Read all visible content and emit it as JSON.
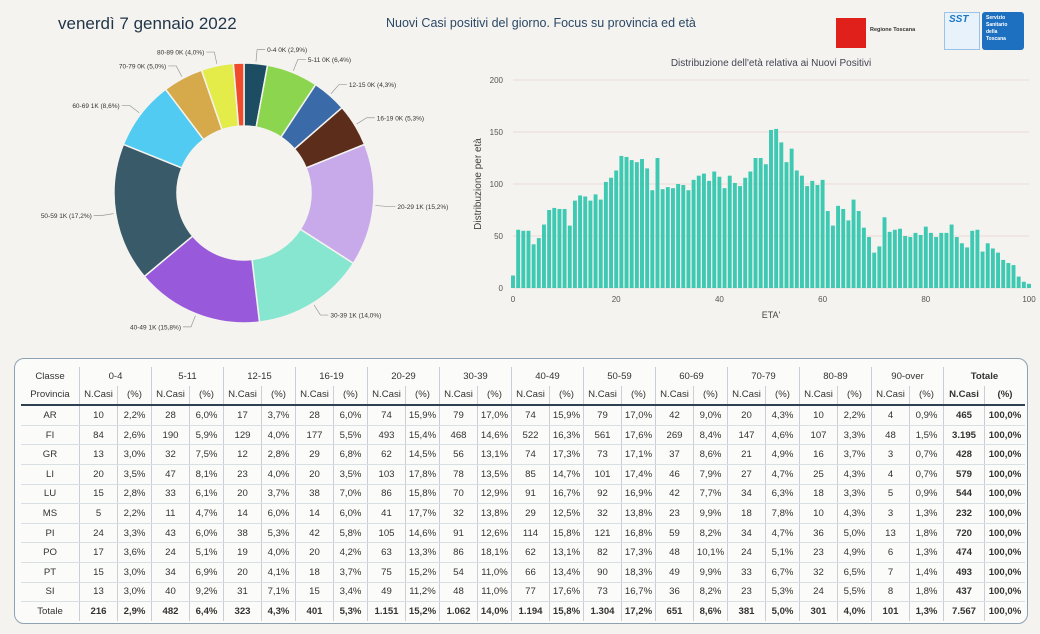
{
  "header": {
    "date": "venerdì 7 gennaio 2022",
    "title": "Nuovi Casi positivi del giorno. Focus su provincia ed età",
    "logo_regione": "Regione Toscana",
    "logo_sst": "SST",
    "logo_sst_sub": [
      "Servizio",
      "Sanitario",
      "della",
      "Toscana"
    ]
  },
  "colors": {
    "histogram": "#3dc9b2",
    "donut": [
      "#1c4d63",
      "#8cd64f",
      "#3b6aa8",
      "#5c2d1a",
      "#c8a9ea",
      "#86e6cf",
      "#9959db",
      "#395a68",
      "#52cbf2",
      "#d6a94a",
      "#e3ec48",
      "#f04b2a"
    ]
  },
  "chart_data": [
    {
      "type": "pie",
      "donut": true,
      "slices": [
        {
          "label": "0-4",
          "value_label": "0K",
          "percent": 2.9
        },
        {
          "label": "5-11",
          "value_label": "0K",
          "percent": 6.4
        },
        {
          "label": "12-15",
          "value_label": "0K",
          "percent": 4.3
        },
        {
          "label": "16-19",
          "value_label": "0K",
          "percent": 5.3
        },
        {
          "label": "20-29",
          "value_label": "1K",
          "percent": 15.2
        },
        {
          "label": "30-39",
          "value_label": "1K",
          "percent": 14.0
        },
        {
          "label": "40-49",
          "value_label": "1K",
          "percent": 15.8
        },
        {
          "label": "50-59",
          "value_label": "1K",
          "percent": 17.2
        },
        {
          "label": "60-69",
          "value_label": "1K",
          "percent": 8.6
        },
        {
          "label": "70-79",
          "value_label": "0K",
          "percent": 5.0
        },
        {
          "label": "80-89",
          "value_label": "0K",
          "percent": 4.0
        },
        {
          "label": "90-over",
          "value_label": "",
          "percent": 1.3
        }
      ]
    },
    {
      "type": "bar",
      "title": "Distribuzione dell'età relativa ai Nuovi Positivi",
      "xlabel": "ETA'",
      "ylabel": "Distribuzione per età",
      "xlim": [
        0,
        100
      ],
      "ylim": [
        0,
        200
      ],
      "xticks": [
        0,
        20,
        40,
        60,
        80,
        100
      ],
      "yticks": [
        0,
        50,
        100,
        150,
        200
      ],
      "grid": true,
      "x_start": 0,
      "values": [
        12,
        56,
        55,
        55,
        42,
        48,
        61,
        75,
        77,
        76,
        76,
        60,
        84,
        89,
        88,
        84,
        90,
        85,
        102,
        106,
        113,
        127,
        126,
        123,
        121,
        124,
        115,
        94,
        125,
        95,
        97,
        96,
        100,
        99,
        94,
        104,
        108,
        110,
        103,
        112,
        107,
        96,
        108,
        101,
        98,
        106,
        112,
        125,
        125,
        119,
        152,
        153,
        140,
        121,
        134,
        113,
        108,
        98,
        103,
        99,
        104,
        74,
        60,
        79,
        76,
        65,
        85,
        74,
        58,
        49,
        34,
        40,
        68,
        54,
        56,
        57,
        50,
        49,
        53,
        51,
        59,
        53,
        49,
        53,
        53,
        61,
        49,
        43,
        39,
        55,
        56,
        35,
        43,
        38,
        34,
        27,
        24,
        22,
        11,
        6,
        4
      ]
    }
  ],
  "table": {
    "class_header": "Classe",
    "province_header": "Provincia",
    "total_header": "Totale",
    "col_ncasi": "N.Casi",
    "col_pct": "(%)",
    "classes": [
      "0-4",
      "5-11",
      "12-15",
      "16-19",
      "20-29",
      "30-39",
      "40-49",
      "50-59",
      "60-69",
      "70-79",
      "80-89",
      "90-over"
    ],
    "rows": [
      {
        "prov": "AR",
        "c": [
          [
            "10",
            "2,2%"
          ],
          [
            "28",
            "6,0%"
          ],
          [
            "17",
            "3,7%"
          ],
          [
            "28",
            "6,0%"
          ],
          [
            "74",
            "15,9%"
          ],
          [
            "79",
            "17,0%"
          ],
          [
            "74",
            "15,9%"
          ],
          [
            "79",
            "17,0%"
          ],
          [
            "42",
            "9,0%"
          ],
          [
            "20",
            "4,3%"
          ],
          [
            "10",
            "2,2%"
          ],
          [
            "4",
            "0,9%"
          ]
        ],
        "tot": "465",
        "tp": "100,0%"
      },
      {
        "prov": "FI",
        "c": [
          [
            "84",
            "2,6%"
          ],
          [
            "190",
            "5,9%"
          ],
          [
            "129",
            "4,0%"
          ],
          [
            "177",
            "5,5%"
          ],
          [
            "493",
            "15,4%"
          ],
          [
            "468",
            "14,6%"
          ],
          [
            "522",
            "16,3%"
          ],
          [
            "561",
            "17,6%"
          ],
          [
            "269",
            "8,4%"
          ],
          [
            "147",
            "4,6%"
          ],
          [
            "107",
            "3,3%"
          ],
          [
            "48",
            "1,5%"
          ]
        ],
        "tot": "3.195",
        "tp": "100,0%"
      },
      {
        "prov": "GR",
        "c": [
          [
            "13",
            "3,0%"
          ],
          [
            "32",
            "7,5%"
          ],
          [
            "12",
            "2,8%"
          ],
          [
            "29",
            "6,8%"
          ],
          [
            "62",
            "14,5%"
          ],
          [
            "56",
            "13,1%"
          ],
          [
            "74",
            "17,3%"
          ],
          [
            "73",
            "17,1%"
          ],
          [
            "37",
            "8,6%"
          ],
          [
            "21",
            "4,9%"
          ],
          [
            "16",
            "3,7%"
          ],
          [
            "3",
            "0,7%"
          ]
        ],
        "tot": "428",
        "tp": "100,0%"
      },
      {
        "prov": "LI",
        "c": [
          [
            "20",
            "3,5%"
          ],
          [
            "47",
            "8,1%"
          ],
          [
            "23",
            "4,0%"
          ],
          [
            "20",
            "3,5%"
          ],
          [
            "103",
            "17,8%"
          ],
          [
            "78",
            "13,5%"
          ],
          [
            "85",
            "14,7%"
          ],
          [
            "101",
            "17,4%"
          ],
          [
            "46",
            "7,9%"
          ],
          [
            "27",
            "4,7%"
          ],
          [
            "25",
            "4,3%"
          ],
          [
            "4",
            "0,7%"
          ]
        ],
        "tot": "579",
        "tp": "100,0%"
      },
      {
        "prov": "LU",
        "c": [
          [
            "15",
            "2,8%"
          ],
          [
            "33",
            "6,1%"
          ],
          [
            "20",
            "3,7%"
          ],
          [
            "38",
            "7,0%"
          ],
          [
            "86",
            "15,8%"
          ],
          [
            "70",
            "12,9%"
          ],
          [
            "91",
            "16,7%"
          ],
          [
            "92",
            "16,9%"
          ],
          [
            "42",
            "7,7%"
          ],
          [
            "34",
            "6,3%"
          ],
          [
            "18",
            "3,3%"
          ],
          [
            "5",
            "0,9%"
          ]
        ],
        "tot": "544",
        "tp": "100,0%"
      },
      {
        "prov": "MS",
        "c": [
          [
            "5",
            "2,2%"
          ],
          [
            "11",
            "4,7%"
          ],
          [
            "14",
            "6,0%"
          ],
          [
            "14",
            "6,0%"
          ],
          [
            "41",
            "17,7%"
          ],
          [
            "32",
            "13,8%"
          ],
          [
            "29",
            "12,5%"
          ],
          [
            "32",
            "13,8%"
          ],
          [
            "23",
            "9,9%"
          ],
          [
            "18",
            "7,8%"
          ],
          [
            "10",
            "4,3%"
          ],
          [
            "3",
            "1,3%"
          ]
        ],
        "tot": "232",
        "tp": "100,0%"
      },
      {
        "prov": "PI",
        "c": [
          [
            "24",
            "3,3%"
          ],
          [
            "43",
            "6,0%"
          ],
          [
            "38",
            "5,3%"
          ],
          [
            "42",
            "5,8%"
          ],
          [
            "105",
            "14,6%"
          ],
          [
            "91",
            "12,6%"
          ],
          [
            "114",
            "15,8%"
          ],
          [
            "121",
            "16,8%"
          ],
          [
            "59",
            "8,2%"
          ],
          [
            "34",
            "4,7%"
          ],
          [
            "36",
            "5,0%"
          ],
          [
            "13",
            "1,8%"
          ]
        ],
        "tot": "720",
        "tp": "100,0%"
      },
      {
        "prov": "PO",
        "c": [
          [
            "17",
            "3,6%"
          ],
          [
            "24",
            "5,1%"
          ],
          [
            "19",
            "4,0%"
          ],
          [
            "20",
            "4,2%"
          ],
          [
            "63",
            "13,3%"
          ],
          [
            "86",
            "18,1%"
          ],
          [
            "62",
            "13,1%"
          ],
          [
            "82",
            "17,3%"
          ],
          [
            "48",
            "10,1%"
          ],
          [
            "24",
            "5,1%"
          ],
          [
            "23",
            "4,9%"
          ],
          [
            "6",
            "1,3%"
          ]
        ],
        "tot": "474",
        "tp": "100,0%"
      },
      {
        "prov": "PT",
        "c": [
          [
            "15",
            "3,0%"
          ],
          [
            "34",
            "6,9%"
          ],
          [
            "20",
            "4,1%"
          ],
          [
            "18",
            "3,7%"
          ],
          [
            "75",
            "15,2%"
          ],
          [
            "54",
            "11,0%"
          ],
          [
            "66",
            "13,4%"
          ],
          [
            "90",
            "18,3%"
          ],
          [
            "49",
            "9,9%"
          ],
          [
            "33",
            "6,7%"
          ],
          [
            "32",
            "6,5%"
          ],
          [
            "7",
            "1,4%"
          ]
        ],
        "tot": "493",
        "tp": "100,0%"
      },
      {
        "prov": "SI",
        "c": [
          [
            "13",
            "3,0%"
          ],
          [
            "40",
            "9,2%"
          ],
          [
            "31",
            "7,1%"
          ],
          [
            "15",
            "3,4%"
          ],
          [
            "49",
            "11,2%"
          ],
          [
            "48",
            "11,0%"
          ],
          [
            "77",
            "17,6%"
          ],
          [
            "73",
            "16,7%"
          ],
          [
            "36",
            "8,2%"
          ],
          [
            "23",
            "5,3%"
          ],
          [
            "24",
            "5,5%"
          ],
          [
            "8",
            "1,8%"
          ]
        ],
        "tot": "437",
        "tp": "100,0%"
      }
    ],
    "total_row": {
      "prov": "Totale",
      "c": [
        [
          "216",
          "2,9%"
        ],
        [
          "482",
          "6,4%"
        ],
        [
          "323",
          "4,3%"
        ],
        [
          "401",
          "5,3%"
        ],
        [
          "1.151",
          "15,2%"
        ],
        [
          "1.062",
          "14,0%"
        ],
        [
          "1.194",
          "15,8%"
        ],
        [
          "1.304",
          "17,2%"
        ],
        [
          "651",
          "8,6%"
        ],
        [
          "381",
          "5,0%"
        ],
        [
          "301",
          "4,0%"
        ],
        [
          "101",
          "1,3%"
        ]
      ],
      "tot": "7.567",
      "tp": "100,0%"
    }
  }
}
